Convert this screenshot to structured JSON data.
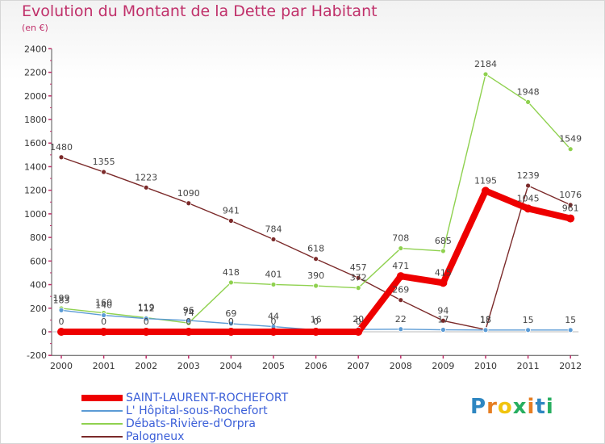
{
  "header": {
    "title": "Evolution du Montant de la Dette par Habitant",
    "subtitle": "(en €)"
  },
  "logo": {
    "text": "Proxiti"
  },
  "chart_data": {
    "type": "line",
    "title": "Evolution du Montant de la Dette par Habitant",
    "subtitle": "(en €)",
    "x": [
      "2000",
      "2001",
      "2002",
      "2003",
      "2004",
      "2005",
      "2006",
      "2007",
      "2008",
      "2009",
      "2010",
      "2011",
      "2012"
    ],
    "y_ticks": [
      -200,
      0,
      200,
      400,
      600,
      800,
      1000,
      1200,
      1400,
      1600,
      1800,
      2000,
      2200,
      2400
    ],
    "ylim": [
      -200,
      2400
    ],
    "grid": false,
    "legend_position": "bottom",
    "series": [
      {
        "name": "SAINT-LAURENT-ROCHEFORT",
        "color": "#ee0000",
        "values": [
          0,
          0,
          0,
          0,
          0,
          0,
          0,
          0,
          471,
          415,
          1195,
          1045,
          961
        ],
        "labels": [
          "0",
          "0",
          "0",
          "0",
          "0",
          "0",
          "0",
          "0",
          "471",
          "415",
          "1195",
          "1045",
          "961"
        ]
      },
      {
        "name": "L' Hôpital-sous-Rochefort",
        "color": "#5b9bd5",
        "values": [
          183,
          140,
          112,
          96,
          69,
          44,
          16,
          20,
          22,
          17,
          15,
          15,
          15
        ],
        "labels": [
          "183",
          "140",
          "112",
          "96",
          "69",
          "44",
          "16",
          "20",
          "22",
          "17",
          "15",
          "15",
          "15"
        ]
      },
      {
        "name": "Débats-Rivière-d'Orpra",
        "color": "#8fd14f",
        "values": [
          199,
          160,
          119,
          74,
          418,
          401,
          390,
          372,
          708,
          685,
          2184,
          1948,
          1549
        ],
        "labels": [
          "199",
          "160",
          "119",
          "74",
          "418",
          "401",
          "390",
          "372",
          "708",
          "685",
          "2184",
          "1948",
          "1549"
        ]
      },
      {
        "name": "Palogneux",
        "color": "#7b2a2a",
        "values": [
          1480,
          1355,
          1223,
          1090,
          941,
          784,
          618,
          457,
          269,
          94,
          18,
          1239,
          1076
        ],
        "labels": [
          "1480",
          "1355",
          "1223",
          "1090",
          "941",
          "784",
          "618",
          "457",
          "269",
          "94",
          "18",
          "1239",
          "1076"
        ]
      }
    ]
  }
}
